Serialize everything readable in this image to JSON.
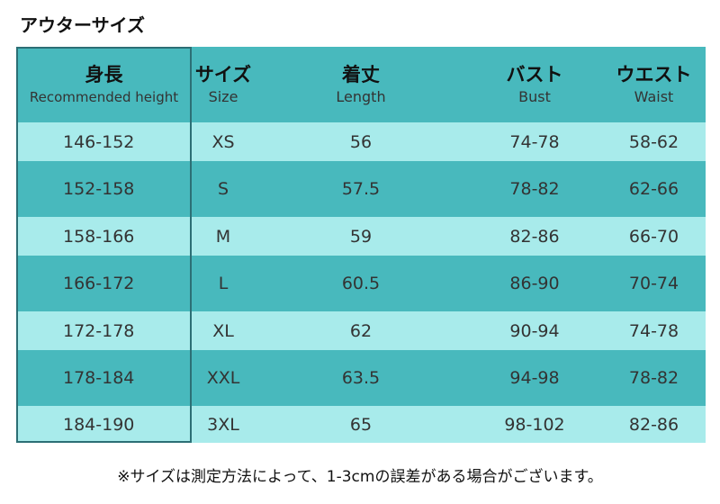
{
  "title": "アウターサイズ",
  "colors": {
    "dark_teal": "#48b9bd",
    "light_teal": "#a8ebeb",
    "frame": "#2c6f75"
  },
  "headers": [
    {
      "main": "身長",
      "sub": "Recommended height"
    },
    {
      "main": "サイズ",
      "sub": "Size"
    },
    {
      "main": "着丈",
      "sub": "Length"
    },
    {
      "main": "バスト",
      "sub": "Bust"
    },
    {
      "main": "ウエスト",
      "sub": "Waist"
    }
  ],
  "rows": [
    [
      "146-152",
      "XS",
      "56",
      "74-78",
      "58-62"
    ],
    [
      "152-158",
      "S",
      "57.5",
      "78-82",
      "62-66"
    ],
    [
      "158-166",
      "M",
      "59",
      "82-86",
      "66-70"
    ],
    [
      "166-172",
      "L",
      "60.5",
      "86-90",
      "70-74"
    ],
    [
      "172-178",
      "XL",
      "62",
      "90-94",
      "74-78"
    ],
    [
      "178-184",
      "XXL",
      "63.5",
      "94-98",
      "78-82"
    ],
    [
      "184-190",
      "3XL",
      "65",
      "98-102",
      "82-86"
    ]
  ],
  "note": "※サイズは測定方法によって、1-3cmの誤差がある場合がございます。"
}
